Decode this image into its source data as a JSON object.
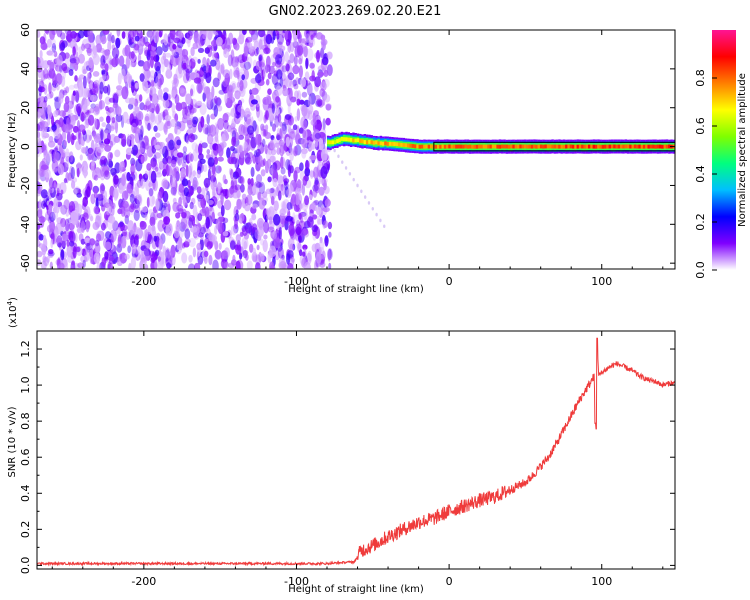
{
  "figure_title": "GN02.2023.269.02.20.E21",
  "chart_data": [
    {
      "type": "heatmap",
      "title": "GN02.2023.269.02.20.E21",
      "xlabel": "Height of straight line (km)",
      "ylabel": "Frequency (Hz)",
      "xlim": [
        -270,
        148
      ],
      "ylim": [
        -63,
        60
      ],
      "x_ticks": [
        -200,
        -100,
        0,
        100
      ],
      "x_tick_labels": [
        "-200",
        "-100",
        "0",
        "100"
      ],
      "y_ticks": [
        -60,
        -40,
        -20,
        0,
        20,
        40,
        60
      ],
      "y_tick_labels": [
        "-60",
        "-40",
        "-20",
        "0",
        "20",
        "40",
        "60"
      ],
      "noise_region_x": [
        -270,
        -78
      ],
      "signal_line": {
        "x_start": -80,
        "x_end": 148,
        "freq_points": [
          [
            -78,
            2
          ],
          [
            -70,
            4
          ],
          [
            -60,
            3
          ],
          [
            -50,
            2
          ],
          [
            -40,
            1.5
          ],
          [
            -20,
            0
          ],
          [
            0,
            0
          ],
          [
            50,
            0
          ],
          [
            148,
            0
          ]
        ],
        "amplitude_points": [
          [
            -78,
            0.75
          ],
          [
            -60,
            0.8
          ],
          [
            -40,
            0.85
          ],
          [
            0,
            0.9
          ],
          [
            100,
            0.95
          ],
          [
            148,
            0.95
          ]
        ]
      },
      "colorbar": {
        "label": "Normalized spectral amplitude",
        "range": [
          0,
          1
        ],
        "ticks": [
          0.0,
          0.2,
          0.4,
          0.6,
          0.8
        ],
        "tick_labels": [
          "0.0",
          "0.2",
          "0.4",
          "0.6",
          "0.8"
        ],
        "colors": [
          "#ffffff",
          "#7f00ff",
          "#0000ff",
          "#00bfff",
          "#00ff7f",
          "#7fff00",
          "#ffff00",
          "#ff7f00",
          "#ff0000",
          "#ff1493"
        ]
      }
    },
    {
      "type": "line",
      "xlabel": "Height of straight line (km)",
      "ylabel": "SNR (10 * v/v)",
      "y_multiplier_label": "(x10",
      "y_multiplier_exponent": "4",
      "y_multiplier_close": ")",
      "xlim": [
        -270,
        148
      ],
      "ylim": [
        -0.02,
        1.3
      ],
      "x_ticks": [
        -200,
        -100,
        0,
        100
      ],
      "x_tick_labels": [
        "-200",
        "-100",
        "0",
        "100"
      ],
      "y_ticks": [
        0.0,
        0.2,
        0.4,
        0.6,
        0.8,
        1.0,
        1.2
      ],
      "y_tick_labels": [
        "0.0",
        "0.2",
        "0.4",
        "0.6",
        "0.8",
        "1.0",
        "1.2"
      ],
      "color": "#ef3b3b",
      "series": [
        {
          "x": [
            -270,
            -200,
            -150,
            -100,
            -80,
            -62,
            -58,
            -50,
            -40,
            -30,
            -20,
            -10,
            0,
            10,
            20,
            30,
            40,
            50,
            55,
            60,
            65,
            70,
            75,
            80,
            85,
            90,
            93,
            95,
            96,
            97,
            98,
            100,
            105,
            110,
            115,
            120,
            125,
            130,
            135,
            140,
            145,
            148
          ],
          "y": [
            0.01,
            0.01,
            0.01,
            0.01,
            0.01,
            0.02,
            0.08,
            0.11,
            0.16,
            0.2,
            0.24,
            0.26,
            0.3,
            0.33,
            0.36,
            0.38,
            0.42,
            0.46,
            0.5,
            0.55,
            0.6,
            0.67,
            0.75,
            0.83,
            0.91,
            0.98,
            1.02,
            1.05,
            0.75,
            1.25,
            1.05,
            1.07,
            1.1,
            1.12,
            1.1,
            1.08,
            1.05,
            1.03,
            1.02,
            1.0,
            1.01,
            1.01
          ]
        }
      ]
    }
  ]
}
